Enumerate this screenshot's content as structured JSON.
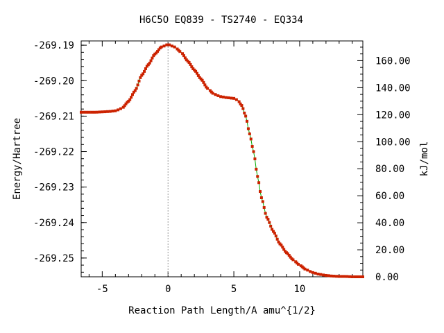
{
  "chart_data": {
    "type": "line",
    "title": "H6C5O   EQ839 - TS2740 - EQ334",
    "xlabel": "Reaction Path Length/A amu^{1/2}",
    "ylabel": "Energy/Hartree",
    "y2label": "kJ/mol",
    "xlim": [
      -6.6,
      14.8
    ],
    "ylim": [
      -269.2553,
      -269.1888
    ],
    "y2lim": [
      0,
      174.6
    ],
    "x_ticks": [
      {
        "value": -5,
        "label": "-5"
      },
      {
        "value": 0,
        "label": "0"
      },
      {
        "value": 5,
        "label": "5"
      },
      {
        "value": 10,
        "label": "10"
      }
    ],
    "y_ticks": [
      {
        "value": -269.19,
        "label": "-269.19"
      },
      {
        "value": -269.2,
        "label": "-269.20"
      },
      {
        "value": -269.21,
        "label": "-269.21"
      },
      {
        "value": -269.22,
        "label": "-269.22"
      },
      {
        "value": -269.23,
        "label": "-269.23"
      },
      {
        "value": -269.24,
        "label": "-269.24"
      },
      {
        "value": -269.25,
        "label": "-269.25"
      }
    ],
    "y2_ticks": [
      {
        "value": 0,
        "label": "0.00"
      },
      {
        "value": 20,
        "label": "20.00"
      },
      {
        "value": 40,
        "label": "40.00"
      },
      {
        "value": 60,
        "label": "60.00"
      },
      {
        "value": 80,
        "label": "80.00"
      },
      {
        "value": 100,
        "label": "100.00"
      },
      {
        "value": 120,
        "label": "120.00"
      },
      {
        "value": 140,
        "label": "140.00"
      },
      {
        "value": 160,
        "label": "160.00"
      }
    ],
    "ts_marker_x": 0,
    "grid": false,
    "colors": {
      "line": "#00aa00",
      "marker": "#cc2200",
      "ts_line": "#999999"
    },
    "series": [
      {
        "points": [
          [
            -6.6,
            -269.2089
          ],
          [
            -6.0,
            -269.2089
          ],
          [
            -5.5,
            -269.2089
          ],
          [
            -5.0,
            -269.2088
          ],
          [
            -4.5,
            -269.2087
          ],
          [
            -4.0,
            -269.2085
          ],
          [
            -3.5,
            -269.2078
          ],
          [
            -3.0,
            -269.2058
          ],
          [
            -2.5,
            -269.2028
          ],
          [
            -2.0,
            -269.1985
          ],
          [
            -1.5,
            -269.1955
          ],
          [
            -1.0,
            -269.1925
          ],
          [
            -0.5,
            -269.1905
          ],
          [
            0.0,
            -269.1898
          ],
          [
            0.5,
            -269.1905
          ],
          [
            1.0,
            -269.192
          ],
          [
            1.5,
            -269.1945
          ],
          [
            2.0,
            -269.197
          ],
          [
            2.5,
            -269.1995
          ],
          [
            3.0,
            -269.2022
          ],
          [
            3.5,
            -269.2038
          ],
          [
            4.0,
            -269.2045
          ],
          [
            4.5,
            -269.2048
          ],
          [
            5.0,
            -269.205
          ],
          [
            5.3,
            -269.2055
          ],
          [
            5.6,
            -269.207
          ],
          [
            5.9,
            -269.21
          ],
          [
            6.2,
            -269.215
          ],
          [
            6.5,
            -269.22
          ],
          [
            6.8,
            -269.227
          ],
          [
            7.1,
            -269.233
          ],
          [
            7.5,
            -269.2385
          ],
          [
            8.0,
            -269.2425
          ],
          [
            8.5,
            -269.246
          ],
          [
            9.0,
            -269.2485
          ],
          [
            9.5,
            -269.2505
          ],
          [
            10.0,
            -269.252
          ],
          [
            10.5,
            -269.2533
          ],
          [
            11.0,
            -269.2541
          ],
          [
            11.5,
            -269.2546
          ],
          [
            12.0,
            -269.2549
          ],
          [
            12.5,
            -269.2551
          ],
          [
            13.0,
            -269.2552
          ],
          [
            13.5,
            -269.2552
          ],
          [
            14.0,
            -269.2553
          ],
          [
            14.8,
            -269.2553
          ]
        ]
      }
    ]
  }
}
